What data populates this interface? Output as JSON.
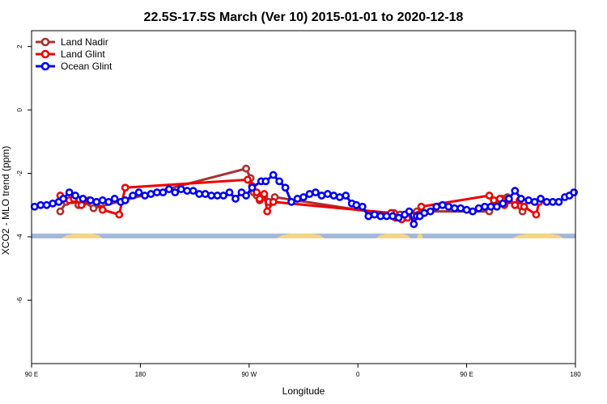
{
  "chart_data": {
    "type": "line",
    "title": "22.5S-17.5S March (Ver 10)   2015-01-01 to 2020-12-18",
    "xlabel": "Longitude",
    "ylabel": "XCO2 - MLO trend (ppm)",
    "xlim": [
      90,
      450
    ],
    "ylim": [
      -8,
      2.5
    ],
    "x_ticks": [
      {
        "value": 90,
        "label": "90 E"
      },
      {
        "value": 162,
        "label": "180"
      },
      {
        "value": 234,
        "label": "90 W"
      },
      {
        "value": 306,
        "label": "0"
      },
      {
        "value": 378,
        "label": "90 E"
      },
      {
        "value": 450,
        "label": "180"
      }
    ],
    "y_ticks": [
      2,
      0,
      -2,
      -4,
      -6
    ],
    "legend_position": "top-left",
    "land_mask": {
      "y_range": [
        -3.9,
        -4.05
      ],
      "ocean_color": "#a3b8d9",
      "land_color": "#f5d680",
      "land_segments": [
        [
          110,
          137
        ],
        [
          252,
          284
        ],
        [
          318,
          341
        ],
        [
          345,
          349
        ],
        [
          408,
          442
        ]
      ]
    },
    "series": [
      {
        "name": "Land Nadir",
        "color": "#a83232",
        "x": [
          109,
          113,
          117,
          121,
          125,
          131,
          232,
          235,
          237,
          239,
          241,
          244,
          247,
          251,
          327,
          330,
          334,
          337,
          340,
          345,
          393,
          402,
          405,
          410,
          415
        ],
        "y": [
          -3.2,
          -2.9,
          -2.85,
          -3.0,
          -2.9,
          -3.1,
          -1.85,
          -2.15,
          -2.6,
          -2.7,
          -2.85,
          -2.75,
          -2.9,
          -2.75,
          -3.3,
          -3.25,
          -3.3,
          -3.35,
          -3.3,
          -3.2,
          -3.2,
          -2.8,
          -2.75,
          -3.0,
          -3.2
        ]
      },
      {
        "name": "Land Glint",
        "color": "#ee0000",
        "x": [
          109,
          115,
          118,
          123,
          128,
          133,
          137,
          148,
          152,
          233,
          236,
          239,
          241,
          244,
          246,
          250,
          328,
          331,
          335,
          339,
          342,
          346,
          348,
          393,
          396,
          400,
          403,
          406,
          410,
          413,
          416,
          424,
          426
        ],
        "y": [
          -2.7,
          -2.85,
          -2.8,
          -3.0,
          -2.85,
          -2.9,
          -3.15,
          -3.3,
          -2.45,
          -2.2,
          -2.4,
          -2.6,
          -2.8,
          -2.65,
          -3.2,
          -2.9,
          -3.25,
          -3.4,
          -3.45,
          -3.4,
          -3.35,
          -3.3,
          -3.05,
          -2.7,
          -2.85,
          -2.8,
          -3.0,
          -2.85,
          -3.0,
          -2.85,
          -3.05,
          -3.3,
          -2.9
        ]
      },
      {
        "name": "Ocean Glint",
        "color": "#0000ee",
        "x": [
          92,
          96,
          100,
          104,
          108,
          111,
          115,
          119,
          124,
          129,
          133,
          137,
          141,
          145,
          149,
          152,
          157,
          161,
          165,
          169,
          173,
          177,
          181,
          185,
          189,
          193,
          197,
          201,
          205,
          209,
          213,
          217,
          221,
          225,
          229,
          232,
          236,
          242,
          245,
          250,
          254,
          258,
          262,
          266,
          270,
          274,
          278,
          282,
          286,
          290,
          294,
          298,
          302,
          305,
          309,
          313,
          317,
          321,
          325,
          329,
          333,
          337,
          340,
          343,
          345,
          347,
          350,
          354,
          358,
          362,
          366,
          370,
          374,
          378,
          382,
          386,
          390,
          394,
          398,
          402,
          406,
          410,
          414,
          419,
          423,
          427,
          431,
          435,
          439,
          443,
          446,
          449
        ],
        "y": [
          -3.05,
          -3.0,
          -3.0,
          -2.95,
          -2.9,
          -2.8,
          -2.6,
          -2.7,
          -2.8,
          -2.85,
          -2.9,
          -2.85,
          -2.9,
          -2.8,
          -2.9,
          -2.85,
          -2.7,
          -2.6,
          -2.7,
          -2.65,
          -2.6,
          -2.6,
          -2.5,
          -2.6,
          -2.5,
          -2.55,
          -2.55,
          -2.65,
          -2.65,
          -2.7,
          -2.7,
          -2.7,
          -2.6,
          -2.8,
          -2.6,
          -2.7,
          -2.45,
          -2.25,
          -2.25,
          -2.05,
          -2.25,
          -2.45,
          -2.9,
          -2.8,
          -2.75,
          -2.65,
          -2.6,
          -2.7,
          -2.65,
          -2.7,
          -2.75,
          -2.7,
          -2.95,
          -3.0,
          -3.05,
          -3.35,
          -3.3,
          -3.35,
          -3.35,
          -3.35,
          -3.4,
          -3.3,
          -3.2,
          -3.6,
          -3.35,
          -3.35,
          -3.25,
          -3.2,
          -3.05,
          -3.0,
          -3.05,
          -3.1,
          -3.1,
          -3.15,
          -3.2,
          -3.1,
          -3.05,
          -3.05,
          -3.05,
          -2.95,
          -2.8,
          -2.55,
          -2.8,
          -2.85,
          -2.9,
          -2.8,
          -2.9,
          -2.9,
          -2.9,
          -2.75,
          -2.7,
          -2.6
        ]
      }
    ]
  }
}
